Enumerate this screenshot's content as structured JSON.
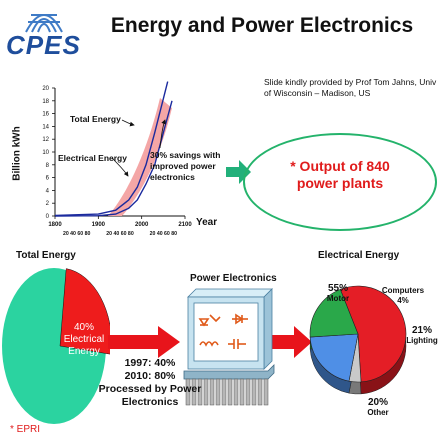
{
  "header": {
    "logo": "CPES",
    "title": "Energy and Power Electronics",
    "credit": "Slide kindly provided by Prof Tom Jahns, Univ of Wisconsin – Madison, US"
  },
  "chart_data": {
    "type": "line",
    "ylabel": "Billion kWh",
    "xlabel": "Year",
    "y_ticks": [
      "0",
      "2",
      "4",
      "6",
      "8",
      "10",
      "12",
      "14",
      "16",
      "18",
      "20"
    ],
    "x_major_ticks": [
      "1800",
      "1900",
      "2000",
      "2100"
    ],
    "x_minor_ticks": [
      "20 40 60 80",
      "20 40 60 80",
      "20 40 60 80"
    ],
    "ylim": [
      0,
      20
    ],
    "xlim": [
      1800,
      2100
    ],
    "series": [
      {
        "name": "Total Energy",
        "x": [
          1800,
          1900,
          1940,
          1970,
          1990,
          2010,
          2030,
          2045,
          2060
        ],
        "y": [
          0.1,
          0.3,
          0.9,
          2.5,
          4.5,
          8,
          13,
          17,
          21
        ]
      },
      {
        "name": "Electrical Energy",
        "x": [
          1800,
          1900,
          1940,
          1970,
          1990,
          2010,
          2030,
          2050,
          2070
        ],
        "y": [
          0,
          0.05,
          0.3,
          1.2,
          2.5,
          5,
          8,
          13,
          18
        ]
      }
    ],
    "annotations": [
      "Total Energy",
      "Electrical Energy",
      "30% savings with improved power electronics"
    ]
  },
  "callout": {
    "text_line1": "* Output of 840",
    "text_line2": "power plants"
  },
  "total_energy": {
    "title": "Total Energy",
    "slice_label": [
      "40%",
      "Electrical",
      "Energy"
    ],
    "electrical_share": 40,
    "colors": {
      "remainder": "#2bd3a0",
      "electrical": "#ee1c1c"
    }
  },
  "power_electronics": {
    "title": "Power Electronics",
    "lines": [
      "1997: 40%",
      "2010: 80%",
      "Processed by Power",
      "Electronics"
    ]
  },
  "electrical_energy": {
    "title": "Electrical Energy",
    "slices": [
      {
        "name": "Motor",
        "percent": 55,
        "color": "#e41e26"
      },
      {
        "name": "Computers",
        "percent": 4,
        "color": "#c9c9c9"
      },
      {
        "name": "Lighting",
        "percent": 21,
        "color": "#4f8fe6"
      },
      {
        "name": "Other",
        "percent": 20,
        "color": "#2aa84a"
      }
    ],
    "labels": {
      "motor_pct": "55%",
      "motor": "Motor",
      "computers": "Computers",
      "computers_pct": "4%",
      "lighting_pct": "21%",
      "lighting": "Lighting",
      "other_pct": "20%",
      "other": "Other"
    }
  },
  "footnote": "* EPRI"
}
